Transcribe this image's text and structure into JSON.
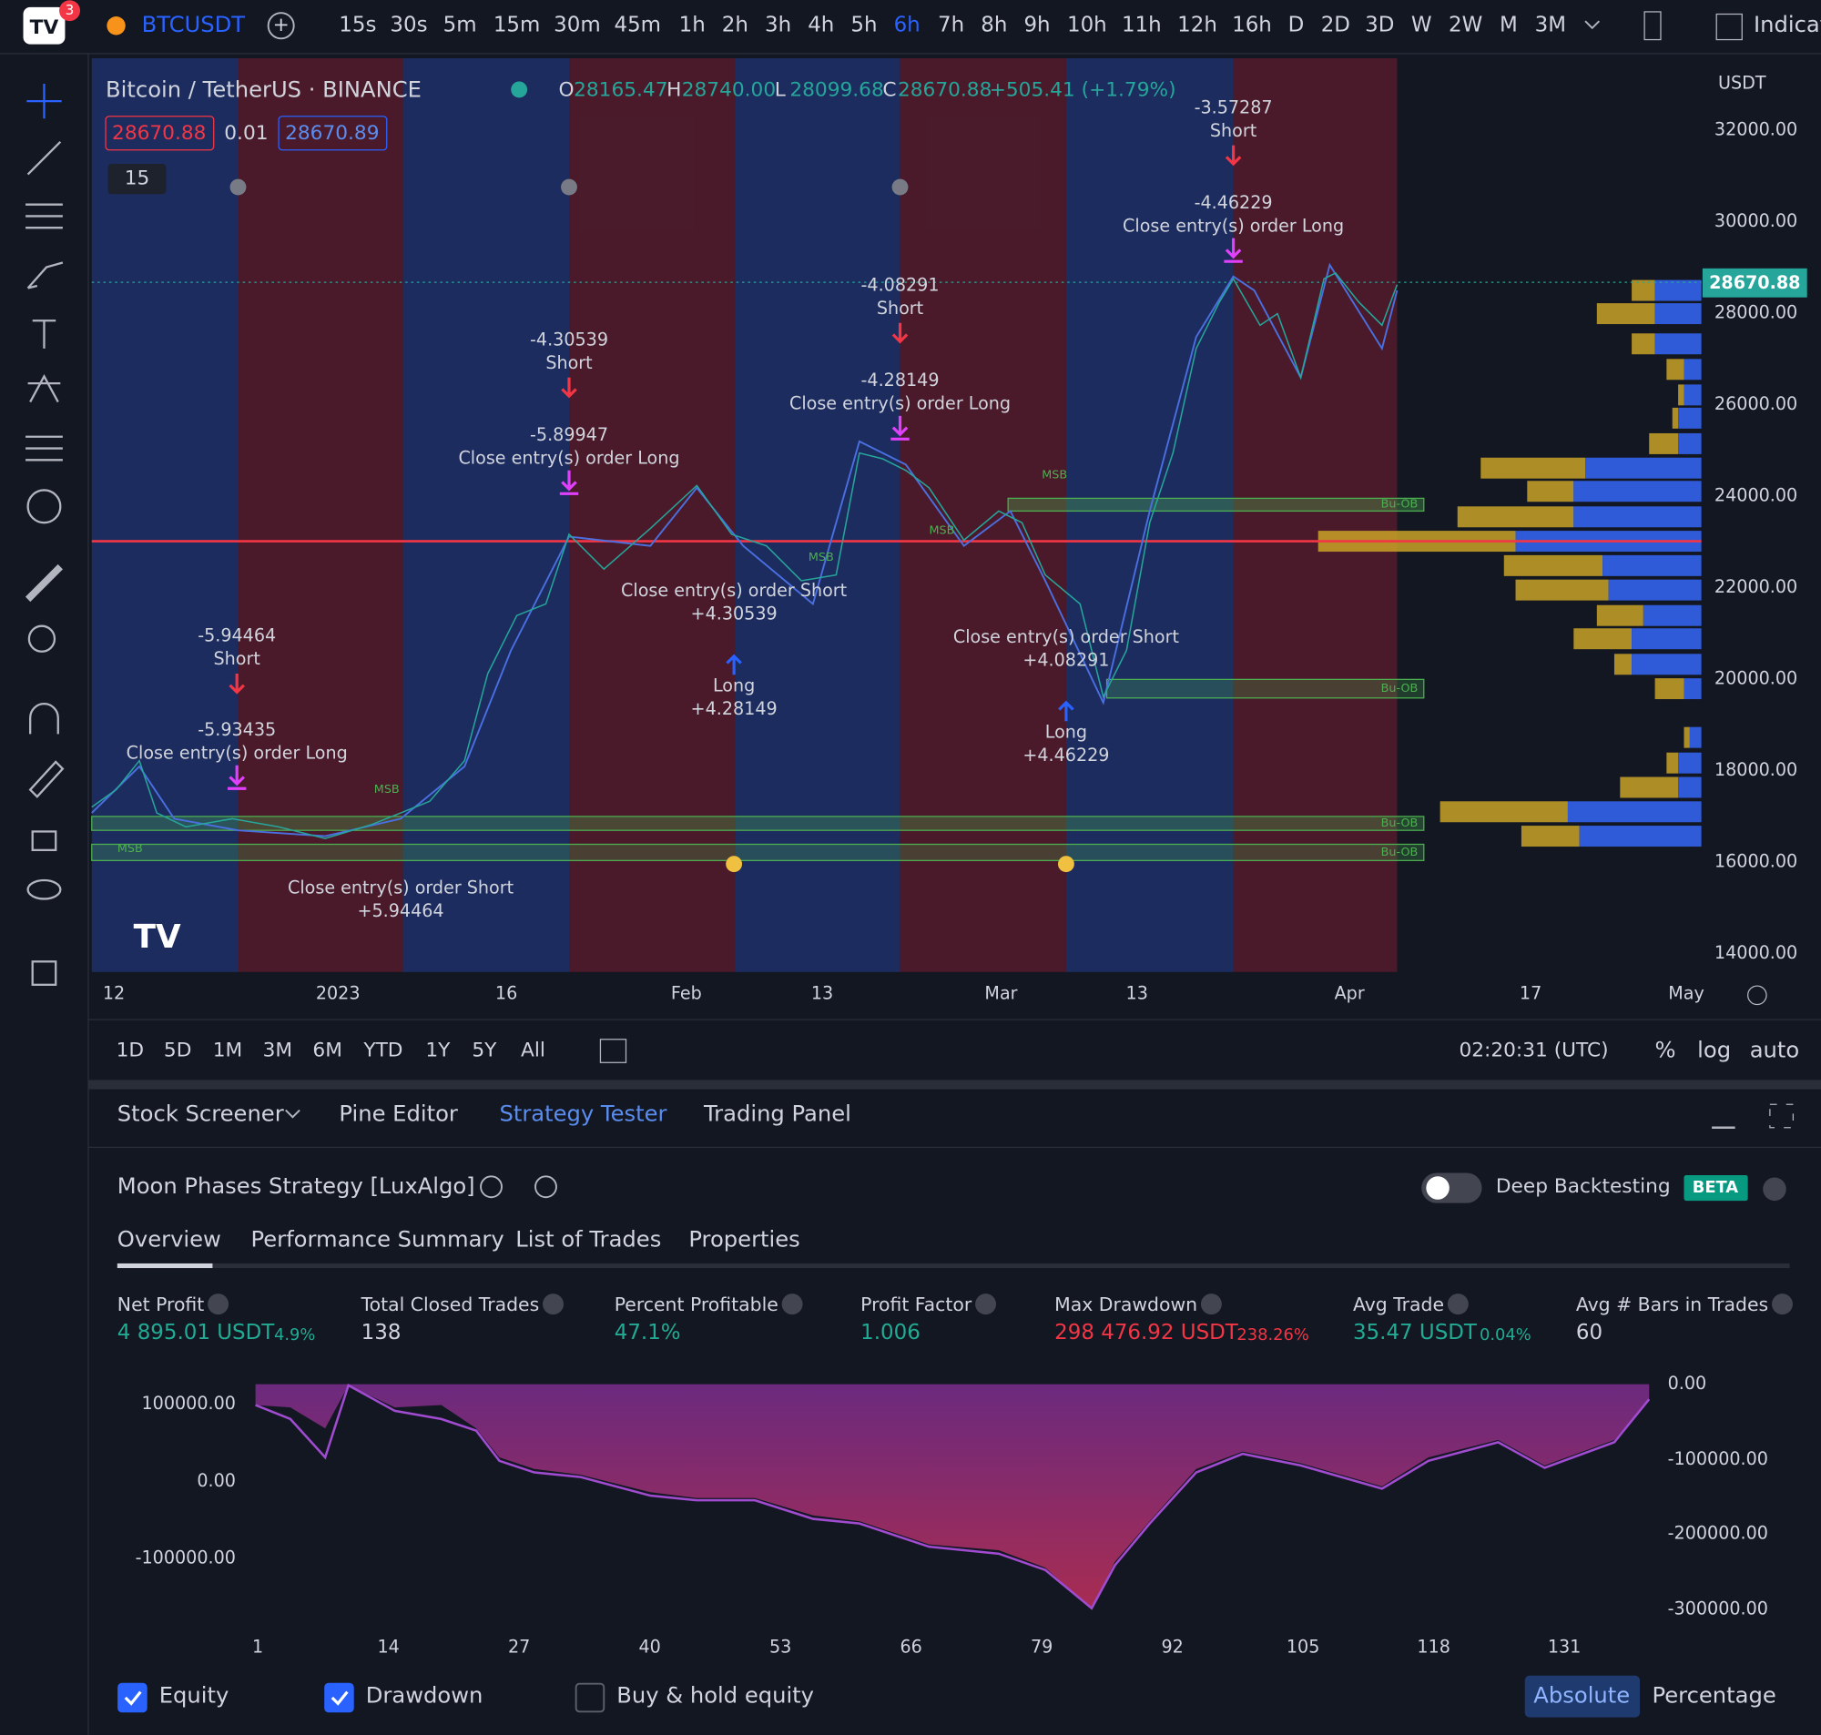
{
  "top_bar": {
    "badge": "3",
    "symbol": "BTCUSDT",
    "intervals": [
      "15s",
      "30s",
      "5m",
      "15m",
      "30m",
      "45m",
      "1h",
      "2h",
      "3h",
      "4h",
      "5h",
      "6h",
      "7h",
      "8h",
      "9h",
      "10h",
      "11h",
      "12h",
      "16h",
      "D",
      "2D",
      "3D",
      "W",
      "2W",
      "M",
      "3M"
    ],
    "selected_interval": "6h",
    "indicators": "Indicat"
  },
  "chart": {
    "title": "Bitcoin / TetherUS · BINANCE",
    "ohlc": [
      {
        "label": "O",
        "value": "28165.47"
      },
      {
        "label": "H",
        "value": "28740.00"
      },
      {
        "label": "L",
        "value": "28099.68"
      },
      {
        "label": "C",
        "value": "28670.88"
      }
    ],
    "change": "+505.41 (+1.79%)",
    "bid": "28670.88",
    "spread": "0.01",
    "ask": "28670.89",
    "collapse_count": "15",
    "currency": "USDT",
    "price_ticks": [
      "32000.00",
      "30000.00",
      "28000.00",
      "26000.00",
      "24000.00",
      "22000.00",
      "20000.00",
      "18000.00",
      "16000.00",
      "14000.00"
    ],
    "last_price": "28670.88",
    "time_ticks": [
      "12",
      "2023",
      "16",
      "Feb",
      "13",
      "Mar",
      "13",
      "Apr",
      "17",
      "May"
    ],
    "annotations": [
      [
        "-3.57287",
        "Short"
      ],
      [
        "-4.46229",
        "Close entry(s) order Long"
      ],
      [
        "-4.08291",
        "Short"
      ],
      [
        "-4.28149",
        "Close entry(s) order Long"
      ],
      [
        "-4.30539",
        "Short"
      ],
      [
        "-5.89947",
        "Close entry(s) order Long"
      ],
      [
        "Close entry(s) order Short",
        "+4.30539"
      ],
      [
        "Long",
        "+4.28149"
      ],
      [
        "Close entry(s) order Short",
        "+4.08291"
      ],
      [
        "Long",
        "+4.46229"
      ],
      [
        "-5.94464",
        "Short"
      ],
      [
        "-5.93435",
        "Close entry(s) order Long"
      ],
      [
        "Close entry(s) order Short",
        "+5.94464"
      ]
    ],
    "msb_labels": [
      "MSB",
      "MSB",
      "MSB",
      "MSB",
      "MSB"
    ],
    "ob_labels": [
      "Bu-OB",
      "Bu-OB",
      "Bu-OB",
      "Bu-OB"
    ]
  },
  "range_bar": {
    "ranges": [
      "1D",
      "5D",
      "1M",
      "3M",
      "6M",
      "YTD",
      "1Y",
      "5Y",
      "All"
    ],
    "clock": "02:20:31 (UTC)",
    "options": [
      "%",
      "log",
      "auto"
    ]
  },
  "panel_tabs": {
    "tabs": [
      "Stock Screener",
      "Pine Editor",
      "Strategy Tester",
      "Trading Panel"
    ],
    "active": "Strategy Tester"
  },
  "strategy": {
    "name": "Moon Phases Strategy [LuxAlgo]",
    "deep_backtesting": "Deep Backtesting",
    "badge": "BETA",
    "subtabs": [
      "Overview",
      "Performance Summary",
      "List of Trades",
      "Properties"
    ],
    "metrics": [
      {
        "label": "Net Profit",
        "value": "4 895.01 USDT",
        "sub": "4.9%",
        "tone": "pos"
      },
      {
        "label": "Total Closed Trades",
        "value": "138",
        "tone": "neutral"
      },
      {
        "label": "Percent Profitable",
        "value": "47.1%",
        "tone": "pos"
      },
      {
        "label": "Profit Factor",
        "value": "1.006",
        "tone": "pos"
      },
      {
        "label": "Max Drawdown",
        "value": "298 476.92 USDT",
        "sub": "238.26%",
        "tone": "neg"
      },
      {
        "label": "Avg Trade",
        "value": "35.47 USDT",
        "sub": "0.04%",
        "tone": "pos"
      },
      {
        "label": "Avg # Bars in Trades",
        "value": "60",
        "tone": "neutral"
      }
    ],
    "equity_left_ticks": [
      "100000.00",
      "0.00",
      "-100000.00"
    ],
    "equity_right_ticks": [
      "0.00",
      "-100000.00",
      "-200000.00",
      "-300000.00"
    ],
    "trade_ticks": [
      "1",
      "14",
      "27",
      "40",
      "53",
      "66",
      "79",
      "92",
      "105",
      "118",
      "131"
    ],
    "legend": [
      {
        "label": "Equity",
        "checked": true
      },
      {
        "label": "Drawdown",
        "checked": true
      },
      {
        "label": "Buy & hold equity",
        "checked": false
      }
    ],
    "modes": [
      "Absolute",
      "Percentage"
    ],
    "active_mode": "Absolute"
  }
}
